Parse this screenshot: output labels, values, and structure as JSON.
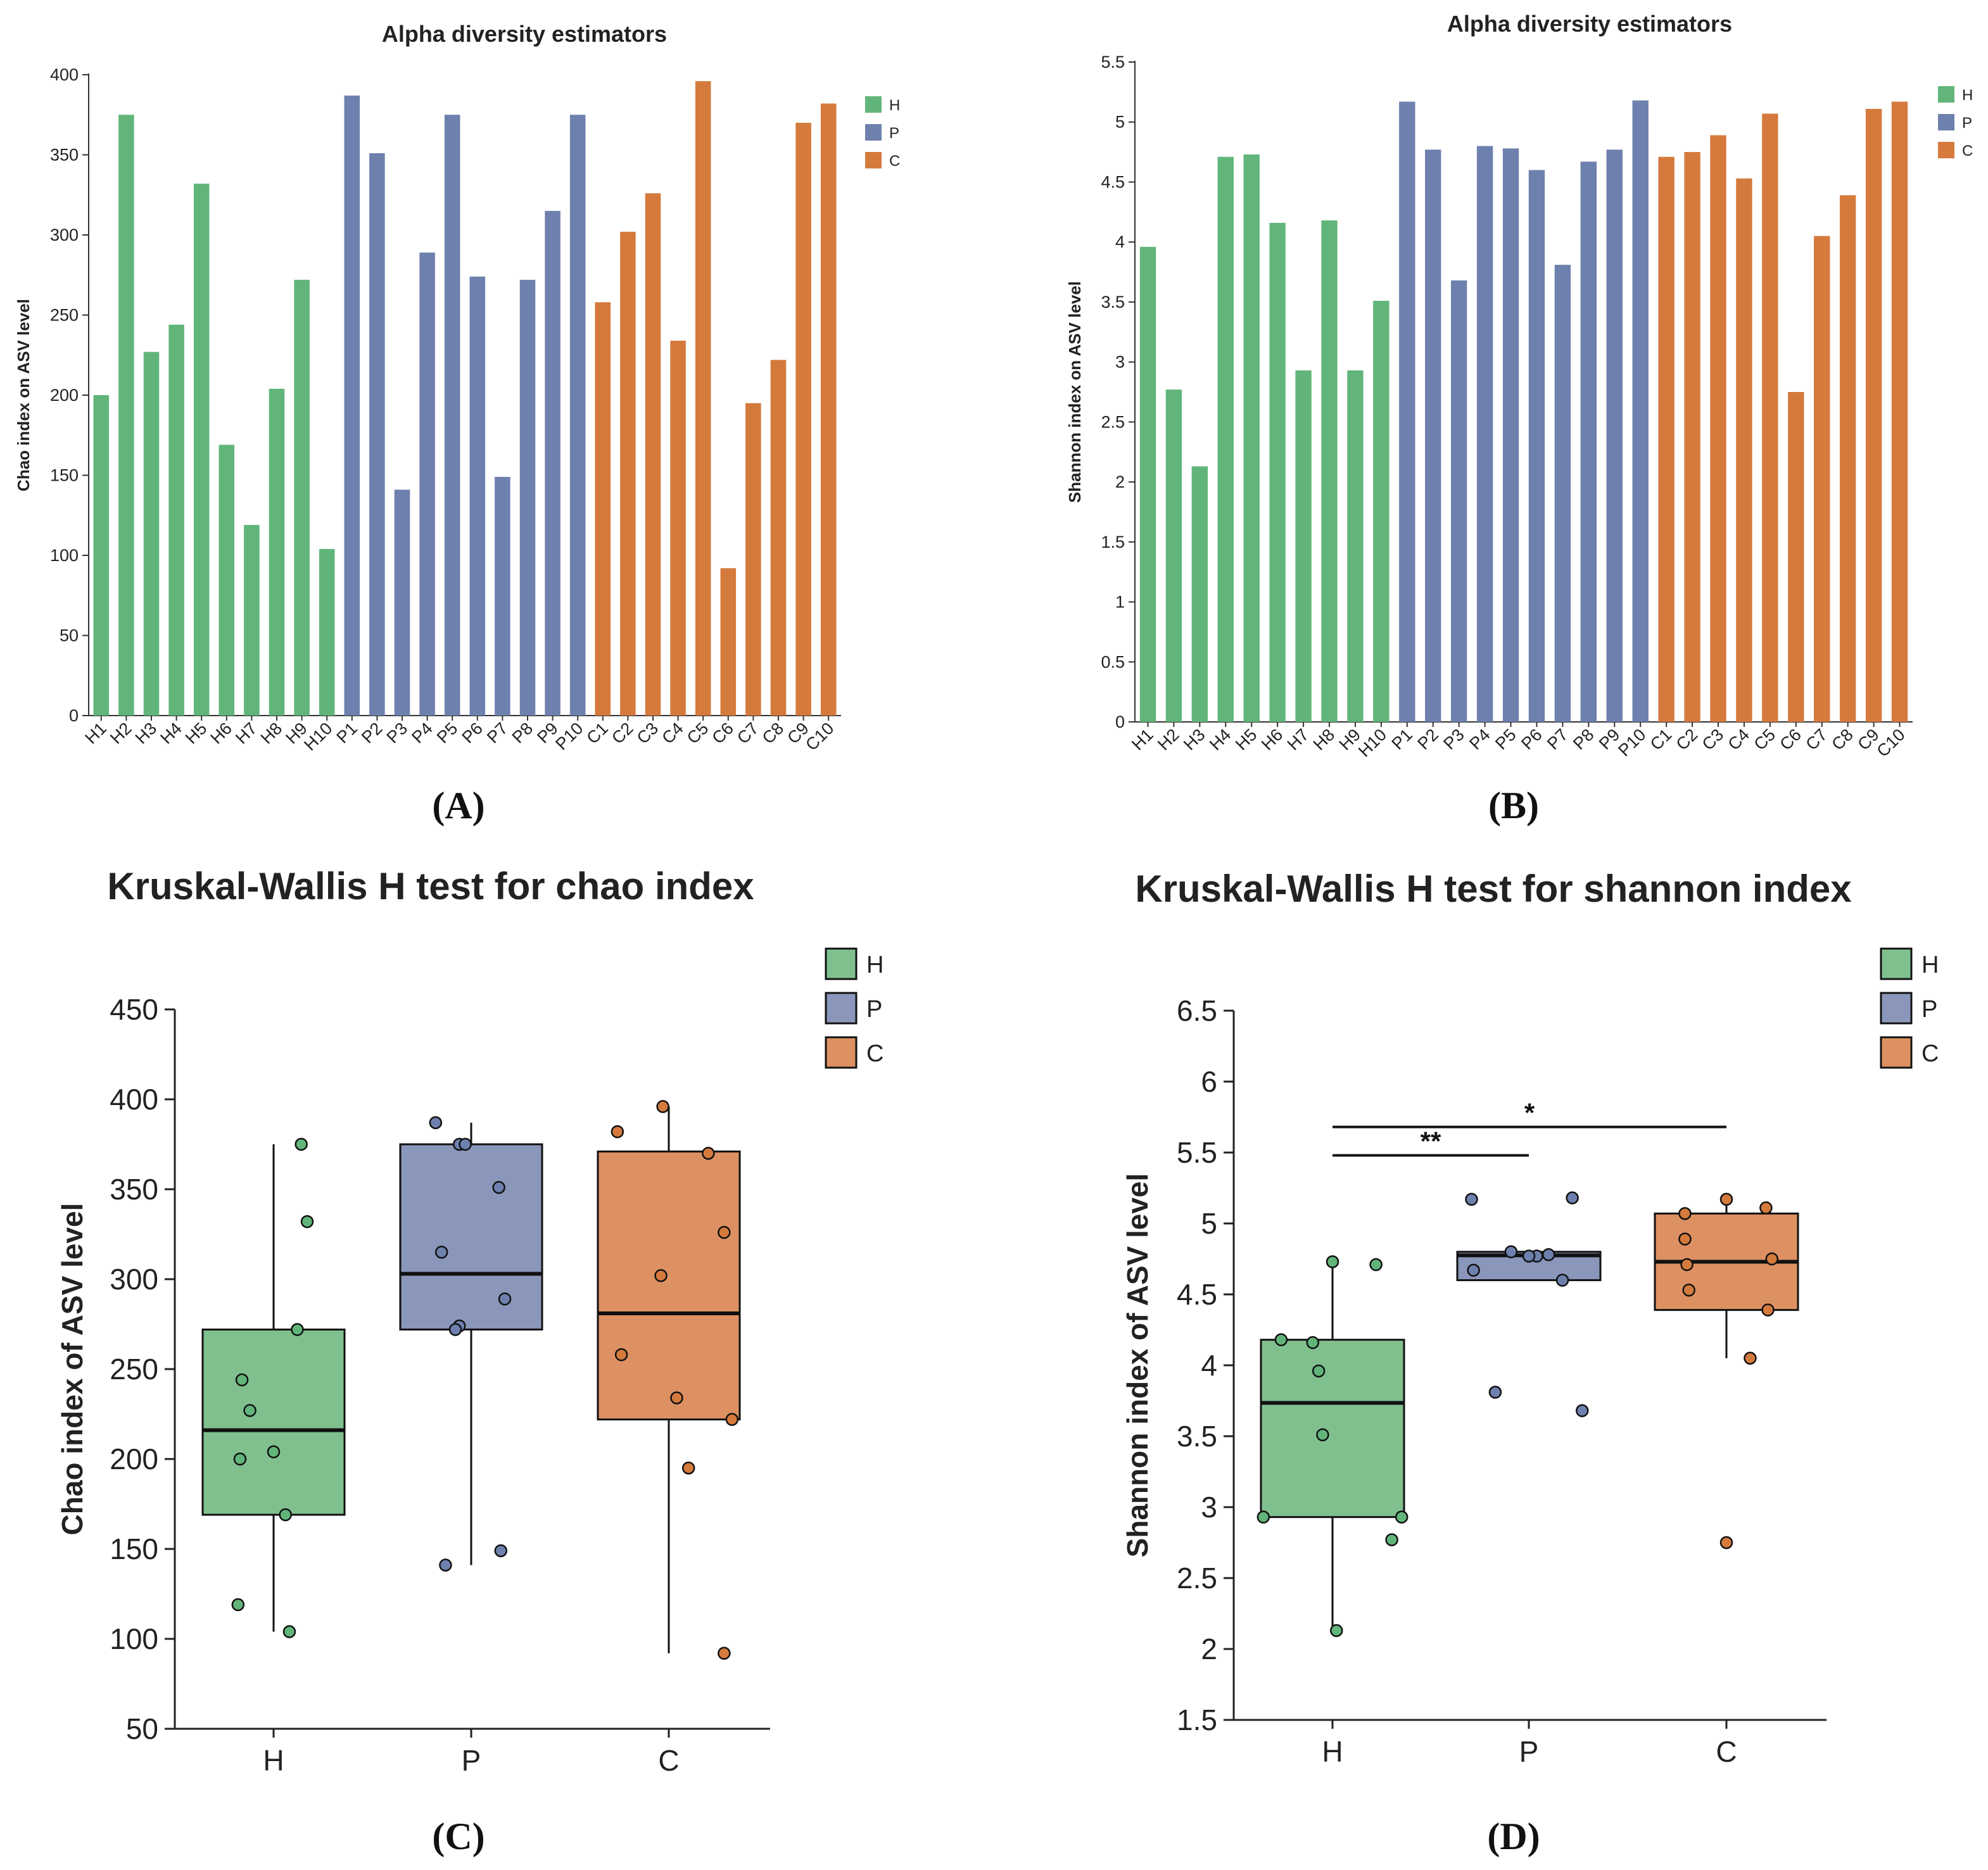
{
  "panel_labels": [
    "(A)",
    "(B)",
    "(C)",
    "(D)"
  ],
  "colors": {
    "H": "#62b57a",
    "P": "#6e80ad",
    "C": "#d57a3d",
    "box_H": "#80c08f",
    "box_P": "#8a96ba",
    "box_C": "#dd9163"
  },
  "chart_data": [
    {
      "type": "bar",
      "panel": "(A)",
      "title": "Alpha diversity estimators",
      "xlabel": "",
      "ylabel": "Chao index on ASV level",
      "ylim": [
        0,
        400
      ],
      "yticks": [
        0,
        50,
        100,
        150,
        200,
        250,
        300,
        350,
        400
      ],
      "categories": [
        "H1",
        "H2",
        "H3",
        "H4",
        "H5",
        "H6",
        "H7",
        "H8",
        "H9",
        "H10",
        "P1",
        "P2",
        "P3",
        "P4",
        "P5",
        "P6",
        "P7",
        "P8",
        "P9",
        "P10",
        "C1",
        "C2",
        "C3",
        "C4",
        "C5",
        "C6",
        "C7",
        "C8",
        "C9",
        "C10"
      ],
      "groups": [
        "H",
        "H",
        "H",
        "H",
        "H",
        "H",
        "H",
        "H",
        "H",
        "H",
        "P",
        "P",
        "P",
        "P",
        "P",
        "P",
        "P",
        "P",
        "P",
        "P",
        "C",
        "C",
        "C",
        "C",
        "C",
        "C",
        "C",
        "C",
        "C",
        "C"
      ],
      "values": [
        200,
        375,
        227,
        244,
        332,
        169,
        119,
        204,
        272,
        104,
        387,
        351,
        141,
        289,
        375,
        274,
        149,
        272,
        315,
        375,
        258,
        302,
        326,
        234,
        396,
        92,
        195,
        222,
        370,
        382
      ],
      "legend": [
        "H",
        "P",
        "C"
      ],
      "legend_position": "top-right"
    },
    {
      "type": "bar",
      "panel": "(B)",
      "title": "Alpha diversity estimators",
      "xlabel": "",
      "ylabel": "Shannon index on ASV level",
      "ylim": [
        0,
        5.5
      ],
      "yticks": [
        "0",
        "0.5",
        "1",
        "1.5",
        "2",
        "2.5",
        "3",
        "3.5",
        "4",
        "4.5",
        "5",
        "5.5"
      ],
      "categories": [
        "H1",
        "H2",
        "H3",
        "H4",
        "H5",
        "H6",
        "H7",
        "H8",
        "H9",
        "H10",
        "P1",
        "P2",
        "P3",
        "P4",
        "P5",
        "P6",
        "P7",
        "P8",
        "P9",
        "P10",
        "C1",
        "C2",
        "C3",
        "C4",
        "C5",
        "C6",
        "C7",
        "C8",
        "C9",
        "C10"
      ],
      "groups": [
        "H",
        "H",
        "H",
        "H",
        "H",
        "H",
        "H",
        "H",
        "H",
        "H",
        "P",
        "P",
        "P",
        "P",
        "P",
        "P",
        "P",
        "P",
        "P",
        "P",
        "C",
        "C",
        "C",
        "C",
        "C",
        "C",
        "C",
        "C",
        "C",
        "C"
      ],
      "values": [
        3.96,
        2.77,
        2.13,
        4.71,
        4.73,
        4.16,
        2.93,
        4.18,
        2.93,
        3.51,
        5.17,
        4.77,
        3.68,
        4.8,
        4.78,
        4.6,
        3.81,
        4.67,
        4.77,
        5.18,
        4.71,
        4.75,
        4.89,
        4.53,
        5.07,
        2.75,
        4.05,
        4.39,
        5.11,
        5.17
      ],
      "legend": [
        "H",
        "P",
        "C"
      ],
      "legend_position": "top-right"
    },
    {
      "type": "box",
      "panel": "(C)",
      "title": "Kruskal-Wallis H test for chao index",
      "xlabel": "",
      "ylabel": "Chao index of ASV level",
      "ylim": [
        50,
        450
      ],
      "yticks": [
        50,
        100,
        150,
        200,
        250,
        300,
        350,
        400,
        450
      ],
      "categories": [
        "H",
        "P",
        "C"
      ],
      "boxes": [
        {
          "group": "H",
          "q1": 169,
          "median": 216,
          "q3": 272,
          "whisker_low": 104,
          "whisker_high": 375
        },
        {
          "group": "P",
          "q1": 272,
          "median": 303,
          "q3": 375,
          "whisker_low": 141,
          "whisker_high": 387
        },
        {
          "group": "C",
          "q1": 222,
          "median": 281,
          "q3": 371,
          "whisker_low": 92,
          "whisker_high": 396
        }
      ],
      "points": [
        {
          "group": "H",
          "jitter": [
            -0.17,
            0.14,
            -0.12,
            -0.16,
            0.17,
            0.06,
            -0.18,
            0.0,
            0.12,
            0.08
          ],
          "values": [
            200,
            375,
            227,
            244,
            332,
            169,
            119,
            204,
            272,
            104
          ]
        },
        {
          "group": "P",
          "jitter": [
            -0.18,
            0.14,
            -0.13,
            0.17,
            -0.06,
            -0.06,
            0.15,
            -0.08,
            -0.15,
            -0.03
          ],
          "values": [
            387,
            351,
            141,
            289,
            375,
            274,
            149,
            272,
            315,
            375
          ]
        },
        {
          "group": "C",
          "jitter": [
            -0.24,
            -0.04,
            0.28,
            0.04,
            -0.03,
            0.28,
            0.1,
            0.32,
            0.2,
            -0.26
          ],
          "values": [
            258,
            302,
            326,
            234,
            396,
            92,
            195,
            222,
            370,
            382
          ]
        }
      ],
      "legend": [
        "H",
        "P",
        "C"
      ],
      "legend_position": "top-right"
    },
    {
      "type": "box",
      "panel": "(D)",
      "title": "Kruskal-Wallis H test for shannon index",
      "xlabel": "",
      "ylabel": "Shannon index of ASV level",
      "ylim": [
        1.5,
        6.5
      ],
      "yticks": [
        "1.5",
        "2",
        "2.5",
        "3",
        "3.5",
        "4",
        "4.5",
        "5",
        "5.5",
        "6",
        "6.5"
      ],
      "categories": [
        "H",
        "P",
        "C"
      ],
      "boxes": [
        {
          "group": "H",
          "q1": 2.93,
          "median": 3.735,
          "q3": 4.18,
          "whisker_low": 2.13,
          "whisker_high": 4.73
        },
        {
          "group": "P",
          "q1": 4.6,
          "median": 4.775,
          "q3": 4.8,
          "whisker_low": 4.6,
          "whisker_high": 4.8
        },
        {
          "group": "C",
          "q1": 4.39,
          "median": 4.73,
          "q3": 5.07,
          "whisker_low": 4.05,
          "whisker_high": 5.17
        }
      ],
      "points": [
        {
          "group": "H",
          "jitter": [
            -0.07,
            0.3,
            0.02,
            0.22,
            0.0,
            -0.1,
            -0.35,
            -0.26,
            0.35,
            -0.05
          ],
          "values": [
            3.96,
            2.77,
            2.13,
            4.71,
            4.73,
            4.16,
            2.93,
            4.18,
            2.93,
            3.51
          ]
        },
        {
          "group": "P",
          "jitter": [
            -0.29,
            0.04,
            0.27,
            -0.09,
            0.1,
            0.17,
            -0.17,
            -0.28,
            0.0,
            0.22
          ],
          "values": [
            5.17,
            4.77,
            3.68,
            4.8,
            4.78,
            4.6,
            3.81,
            4.67,
            4.77,
            5.18
          ]
        },
        {
          "group": "C",
          "jitter": [
            -0.2,
            0.23,
            -0.21,
            -0.19,
            -0.21,
            0.0,
            0.12,
            0.21,
            0.2,
            0.0
          ],
          "values": [
            4.71,
            4.75,
            4.89,
            4.53,
            5.07,
            2.75,
            4.05,
            4.39,
            5.11,
            5.17
          ]
        }
      ],
      "significance": [
        {
          "from": "H",
          "to": "P",
          "label": "**",
          "y": 5.48
        },
        {
          "from": "H",
          "to": "C",
          "label": "*",
          "y": 5.68
        }
      ],
      "legend": [
        "H",
        "P",
        "C"
      ],
      "legend_position": "top-right"
    }
  ]
}
